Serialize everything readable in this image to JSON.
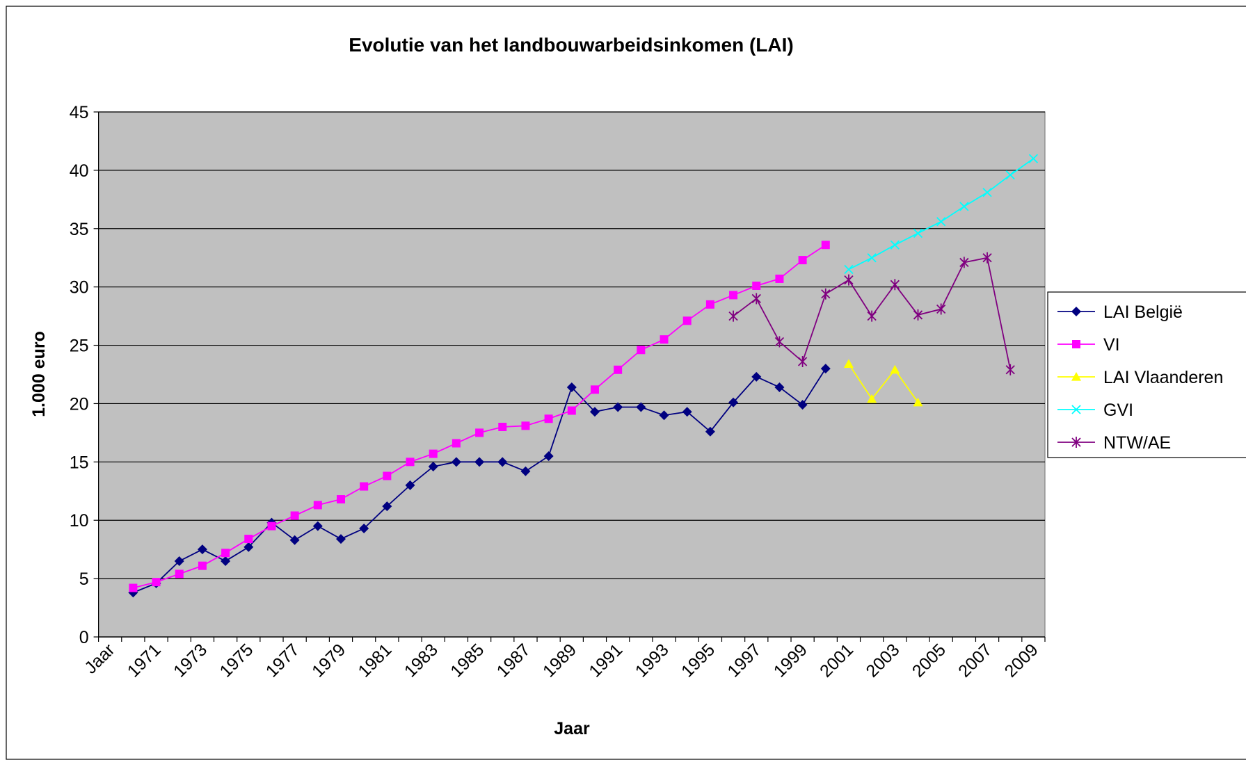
{
  "chart_data": {
    "type": "line",
    "title": "Evolutie van het landbouwarbeidsinkomen (LAI)",
    "x_label": "Jaar",
    "y_label": "1.000 euro",
    "categories": [
      "Jaar",
      null,
      "1971",
      null,
      "1973",
      null,
      "1975",
      null,
      "1977",
      null,
      "1979",
      null,
      "1981",
      null,
      "1983",
      null,
      "1985",
      null,
      "1987",
      null,
      "1989",
      null,
      "1991",
      null,
      "1993",
      null,
      "1995",
      null,
      "1997",
      null,
      "1999",
      null,
      "2001",
      null,
      "2003",
      null,
      "2005",
      null,
      "2007",
      null,
      "2009"
    ],
    "ylim": [
      0,
      45
    ],
    "yticks": [
      0,
      5,
      10,
      15,
      20,
      25,
      30,
      35,
      40,
      45
    ],
    "grid": true,
    "legend": "right",
    "series": [
      {
        "name": "LAI België",
        "color": "#000080",
        "marker": "diamond",
        "values": [
          null,
          3.8,
          4.6,
          6.5,
          7.5,
          6.5,
          7.7,
          9.8,
          8.3,
          9.5,
          8.4,
          9.3,
          11.2,
          13.0,
          14.6,
          15.0,
          15.0,
          15.0,
          14.2,
          15.5,
          21.4,
          19.3,
          19.7,
          19.7,
          19.0,
          19.3,
          17.6,
          20.1,
          22.3,
          21.4,
          19.9,
          23.0,
          null,
          null,
          null,
          null,
          null,
          null,
          null,
          null,
          null
        ]
      },
      {
        "name": "VI",
        "color": "#ff00ff",
        "marker": "square",
        "values": [
          null,
          4.2,
          4.7,
          5.4,
          6.1,
          7.2,
          8.4,
          9.5,
          10.4,
          11.3,
          11.8,
          12.9,
          13.8,
          15.0,
          15.7,
          16.6,
          17.5,
          18.0,
          18.1,
          18.7,
          19.4,
          21.2,
          22.9,
          24.6,
          25.5,
          27.1,
          28.5,
          29.3,
          30.1,
          30.7,
          32.3,
          33.6,
          null,
          null,
          null,
          null,
          null,
          null,
          null,
          null,
          null
        ]
      },
      {
        "name": "LAI Vlaanderen",
        "color": "#ffff00",
        "marker": "triangle",
        "values": [
          null,
          null,
          null,
          null,
          null,
          null,
          null,
          null,
          null,
          null,
          null,
          null,
          null,
          null,
          null,
          null,
          null,
          null,
          null,
          null,
          null,
          null,
          null,
          null,
          null,
          null,
          null,
          null,
          null,
          null,
          null,
          null,
          23.4,
          20.4,
          22.9,
          20.1,
          null,
          null,
          null,
          null,
          null
        ]
      },
      {
        "name": "GVI",
        "color": "#00ffff",
        "marker": "x",
        "values": [
          null,
          null,
          null,
          null,
          null,
          null,
          null,
          null,
          null,
          null,
          null,
          null,
          null,
          null,
          null,
          null,
          null,
          null,
          null,
          null,
          null,
          null,
          null,
          null,
          null,
          null,
          null,
          null,
          null,
          null,
          null,
          null,
          31.5,
          32.5,
          33.6,
          34.6,
          35.6,
          36.9,
          38.1,
          39.6,
          41.0
        ]
      },
      {
        "name": "NTW/AE",
        "color": "#800080",
        "marker": "star",
        "values": [
          null,
          null,
          null,
          null,
          null,
          null,
          null,
          null,
          null,
          null,
          null,
          null,
          null,
          null,
          null,
          null,
          null,
          null,
          null,
          null,
          null,
          null,
          null,
          null,
          null,
          null,
          null,
          27.5,
          29.0,
          25.3,
          23.6,
          29.4,
          30.6,
          27.5,
          30.2,
          27.6,
          28.1,
          32.1,
          32.5,
          22.9,
          null
        ]
      }
    ]
  }
}
